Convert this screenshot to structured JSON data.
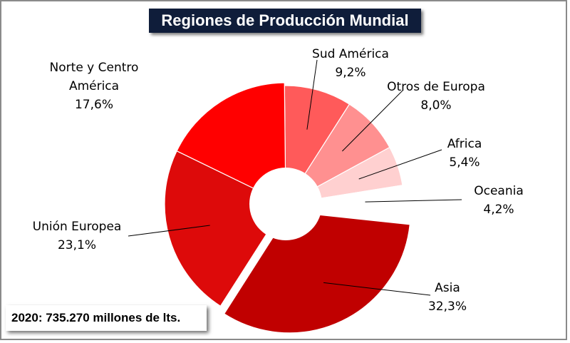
{
  "title": "Regiones de Producción Mundial",
  "footnote": "2020: 735.270 millones de lts.",
  "chart_data": {
    "type": "pie",
    "title": "Regiones de Producción Mundial",
    "series": [
      {
        "name": "Sud América",
        "value": 9.2,
        "label": "9,2%",
        "color": "#ff5a5a"
      },
      {
        "name": "Otros de Europa",
        "value": 8.0,
        "label": "8,0%",
        "color": "#ff9090"
      },
      {
        "name": "Africa",
        "value": 5.4,
        "label": "5,4%",
        "color": "#ffd0d0"
      },
      {
        "name": "Oceania",
        "value": 4.2,
        "label": "4,2%",
        "color": "#ffffff"
      },
      {
        "name": "Asia",
        "value": 32.3,
        "label": "32,3%",
        "color": "#c00000"
      },
      {
        "name": "Unión Europea",
        "value": 23.1,
        "label": "23,1%",
        "color": "#dd0a0a"
      },
      {
        "name": "Norte y Centro América",
        "value": 17.6,
        "label": "17,6%",
        "color": "#ff0000"
      }
    ]
  }
}
